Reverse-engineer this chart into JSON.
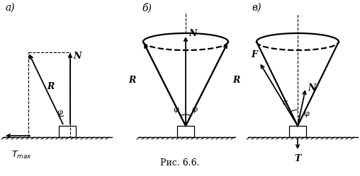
{
  "bg_color": "#ffffff",
  "line_color": "#000000",
  "fig_width": 5.08,
  "fig_height": 2.49,
  "dpi": 100,
  "caption": "Рис. 6.6.",
  "label_a": "а)",
  "label_b": "б)",
  "label_c": "в)"
}
